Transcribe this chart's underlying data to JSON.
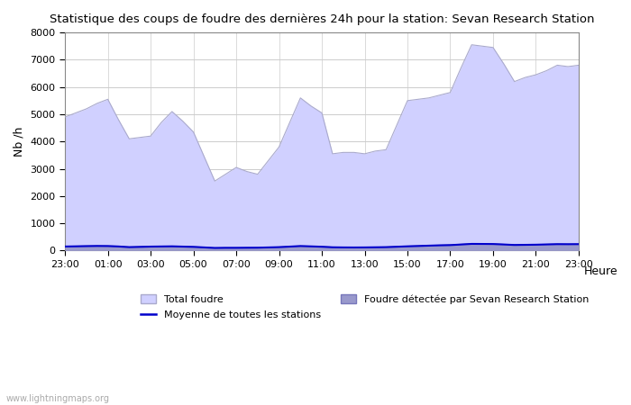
{
  "title": "Statistique des coups de foudre des dernières 24h pour la station: Sevan Research Station",
  "xlabel": "Heure",
  "ylabel": "Nb /h",
  "ylim": [
    0,
    8000
  ],
  "yticks": [
    0,
    1000,
    2000,
    3000,
    4000,
    5000,
    6000,
    7000,
    8000
  ],
  "x_labels": [
    "23:00",
    "01:00",
    "03:00",
    "05:00",
    "07:00",
    "09:00",
    "11:00",
    "13:00",
    "15:00",
    "17:00",
    "19:00",
    "21:00",
    "23:00"
  ],
  "x_tick_positions": [
    0,
    2,
    4,
    6,
    8,
    10,
    12,
    14,
    16,
    18,
    20,
    22,
    24
  ],
  "total_foudre_color": "#d0d0ff",
  "total_foudre_edge": "#aaaacc",
  "station_foudre_color": "#9999cc",
  "station_foudre_edge": "#7777bb",
  "moyenne_color": "#0000cc",
  "background_color": "#ffffff",
  "grid_color": "#cccccc",
  "watermark": "www.lightningmaps.org",
  "total_foudre": [
    4900,
    5050,
    5200,
    5400,
    5550,
    4800,
    4100,
    4150,
    4200,
    4700,
    5100,
    4750,
    4350,
    3450,
    2550,
    2800,
    3050,
    2900,
    2800,
    3300,
    3800,
    4700,
    5600,
    5300,
    5050,
    3550,
    3600,
    3600,
    3550,
    3650,
    3700,
    4600,
    5500,
    5550,
    5600,
    5700,
    5800,
    6700,
    7550,
    7500,
    7450,
    6850,
    6200,
    6350,
    6450,
    6600,
    6800,
    6750,
    6800
  ],
  "station_foudre": [
    150,
    160,
    170,
    175,
    170,
    155,
    130,
    140,
    150,
    155,
    160,
    150,
    140,
    120,
    100,
    105,
    105,
    108,
    110,
    120,
    130,
    150,
    170,
    158,
    145,
    125,
    120,
    118,
    120,
    125,
    130,
    145,
    160,
    172,
    185,
    197,
    210,
    230,
    250,
    248,
    245,
    228,
    210,
    215,
    220,
    230,
    240,
    238,
    240
  ],
  "moyenne": [
    148,
    155,
    162,
    168,
    165,
    150,
    125,
    135,
    145,
    150,
    155,
    145,
    135,
    115,
    95,
    100,
    100,
    103,
    105,
    115,
    125,
    145,
    165,
    153,
    140,
    120,
    115,
    113,
    115,
    120,
    125,
    140,
    155,
    167,
    180,
    192,
    200,
    222,
    245,
    243,
    240,
    223,
    205,
    210,
    215,
    225,
    235,
    233,
    235
  ],
  "n_points": 49
}
